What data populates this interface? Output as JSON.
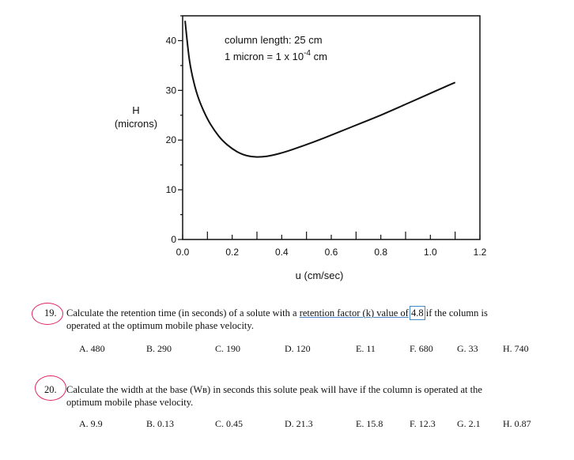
{
  "chart_data": {
    "type": "line",
    "title": "",
    "xlabel": "u (cm/sec)",
    "ylabel": [
      "H",
      "(microns)"
    ],
    "xlim": [
      0.0,
      1.2
    ],
    "ylim": [
      0,
      45
    ],
    "xticks": [
      "0.0",
      "0.2",
      "0.4",
      "0.6",
      "0.8",
      "1.0",
      "1.2"
    ],
    "yticks": [
      "0",
      "10",
      "20",
      "30",
      "40"
    ],
    "annotations": [
      "column length: 25 cm",
      "1 micron = 1 x 10",
      "-4",
      " cm"
    ],
    "series": [
      {
        "x": [
          0.01,
          0.02,
          0.03,
          0.05,
          0.07,
          0.1,
          0.13,
          0.16,
          0.2,
          0.24,
          0.28,
          0.32,
          0.36,
          0.4,
          0.45,
          0.5,
          0.55,
          0.6,
          0.65,
          0.7,
          0.75,
          0.8,
          0.85,
          0.9,
          0.95,
          1.0,
          1.05,
          1.1
        ],
        "y": [
          44,
          39,
          35,
          30.5,
          27.5,
          24.2,
          21.8,
          19.9,
          18.2,
          17.1,
          16.6,
          16.6,
          16.9,
          17.4,
          18.2,
          19.1,
          20.0,
          21.0,
          22.0,
          23.0,
          24.0,
          25.0,
          26.1,
          27.2,
          28.3,
          29.4,
          30.5,
          31.6
        ]
      }
    ]
  },
  "questions": [
    {
      "number": "19.",
      "line1_pre": "Calculate the retention time (in seconds) of a solute with a ",
      "line1_underlined": "retention factor (k) value of",
      "line1_boxed": "4.8",
      "line1_post": " if the column is",
      "line2": "operated at the optimum mobile phase velocity.",
      "choices": [
        "A. 480",
        "B. 290",
        "C. 190",
        "D. 120",
        "E. 11",
        "F. 680",
        "G. 33",
        "H. 740"
      ]
    },
    {
      "number": "20.",
      "line1": "Calculate the width at the base (Wʙ) in seconds this solute peak will have if the column is operated at the",
      "line2": "optimum mobile phase velocity.",
      "choices": [
        "A. 9.9",
        "B. 0.13",
        "C. 0.45",
        "D. 21.3",
        "E. 15.8",
        "F. 12.3",
        "G. 2.1",
        "H. 0.87"
      ]
    }
  ]
}
